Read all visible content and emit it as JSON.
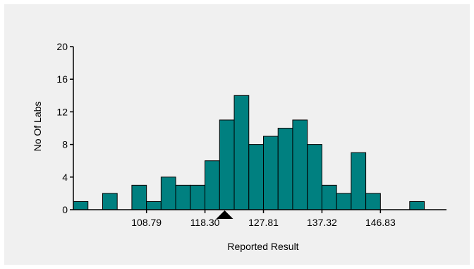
{
  "chart_data": {
    "type": "bar",
    "title": "",
    "xlabel": "Reported Result",
    "ylabel": "No Of Labs",
    "bin_width": 2.3775,
    "bin_start": 96.9,
    "x_ticks": [
      108.79,
      118.3,
      127.81,
      137.32,
      146.83
    ],
    "x_tick_labels": [
      "108.79",
      "118.30",
      "127.81",
      "137.32",
      "146.83"
    ],
    "xlim": [
      96.9,
      157.57
    ],
    "ylim": [
      0,
      20
    ],
    "y_ticks": [
      0,
      4,
      8,
      12,
      16,
      20
    ],
    "y_tick_labels": [
      "0",
      "4",
      "8",
      "12",
      "16",
      "20"
    ],
    "values": [
      1,
      0,
      2,
      0,
      3,
      1,
      4,
      3,
      3,
      6,
      11,
      14,
      8,
      9,
      10,
      11,
      8,
      3,
      2,
      7,
      2,
      0,
      0,
      1
    ],
    "marker_x": 121.5,
    "grid": false,
    "bar_color": "#008080",
    "bar_edge_color": "#000000",
    "marker_color": "#000000"
  }
}
